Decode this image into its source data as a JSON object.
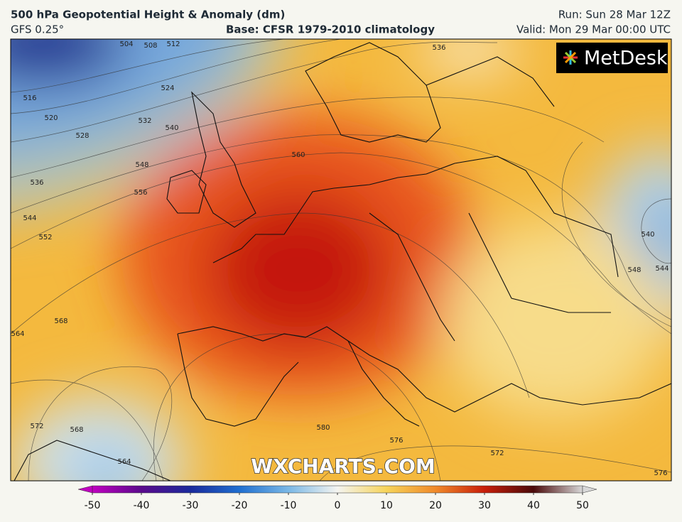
{
  "header": {
    "title": "500 hPa Geopotential Height & Anomaly (dm)",
    "model": "GFS 0.25°",
    "base": "Base: CFSR 1979-2010 climatology",
    "run": "Run: Sun 28 Mar 12Z",
    "valid": "Valid: Mon 29 Mar 00:00 UTC"
  },
  "logo": "MetDesk",
  "watermark": "WXCHARTS.COM",
  "contour_labels": [
    504,
    508,
    512,
    516,
    520,
    524,
    528,
    532,
    536,
    540,
    544,
    548,
    552,
    556,
    560,
    536,
    540,
    544,
    548,
    564,
    568,
    572,
    568,
    564,
    580,
    576,
    572,
    576
  ],
  "colorbar": {
    "range": [
      -50,
      50
    ],
    "ticks": [
      -50,
      -40,
      -30,
      -20,
      -10,
      0,
      10,
      20,
      30,
      40,
      50
    ],
    "colors": [
      "#c000c0",
      "#5a0a8c",
      "#1a2a9c",
      "#1f6fd0",
      "#7ab8e6",
      "#f4f4f0",
      "#f6d45a",
      "#f08a2a",
      "#c81e0a",
      "#4a0a0a",
      "#d8d8d8"
    ]
  }
}
